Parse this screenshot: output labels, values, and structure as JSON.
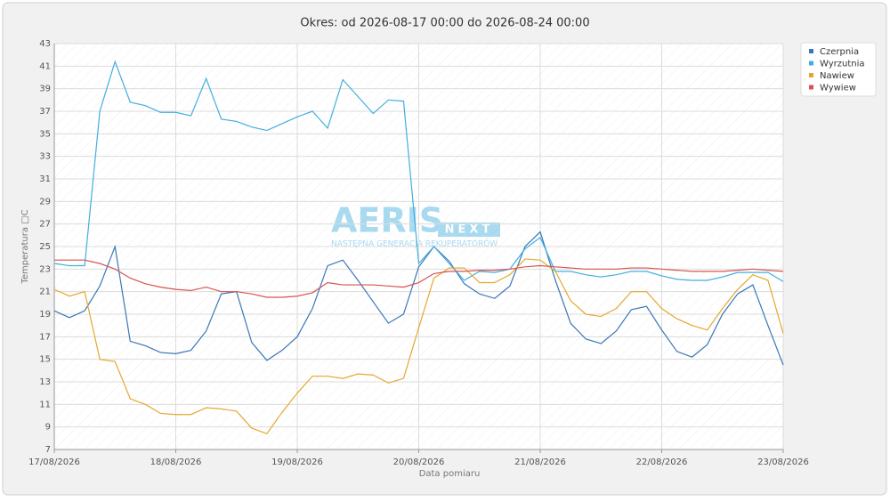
{
  "chart_data": {
    "type": "line",
    "title": "Okres: od 2026-08-17 00:00 do 2026-08-24 00:00",
    "x_label": "Data pomiaru",
    "y_label": "Temperatura □C",
    "watermark": {
      "brand": "AERIS",
      "badge": "NEXT",
      "tagline": "NASTĘPNA GENERACJA REKUPERATORÓW"
    },
    "xlim": [
      17,
      23
    ],
    "xticks": [
      {
        "value": 17,
        "label": "17/08/2026"
      },
      {
        "value": 18,
        "label": "18/08/2026"
      },
      {
        "value": 19,
        "label": "19/08/2026"
      },
      {
        "value": 20,
        "label": "20/08/2026"
      },
      {
        "value": 21,
        "label": "21/08/2026"
      },
      {
        "value": 22,
        "label": "22/08/2026"
      },
      {
        "value": 23,
        "label": "23/08/2026"
      }
    ],
    "ylim": [
      7,
      43
    ],
    "yticks": [
      7,
      9,
      11,
      13,
      15,
      17,
      19,
      21,
      23,
      25,
      27,
      29,
      31,
      33,
      35,
      37,
      39,
      41,
      43
    ],
    "grid": true,
    "legend": "top-right",
    "x": [
      17,
      17.125,
      17.25,
      17.375,
      17.5,
      17.625,
      17.75,
      17.875,
      18,
      18.125,
      18.25,
      18.375,
      18.5,
      18.625,
      18.75,
      18.875,
      19,
      19.125,
      19.25,
      19.375,
      19.5,
      19.625,
      19.75,
      19.875,
      20,
      20.125,
      20.25,
      20.375,
      20.5,
      20.625,
      20.75,
      20.875,
      21,
      21.125,
      21.25,
      21.375,
      21.5,
      21.625,
      21.75,
      21.875,
      22,
      22.125,
      22.25,
      22.375,
      22.5,
      22.625,
      22.75,
      22.875,
      23
    ],
    "series": [
      {
        "name": "Czerpnia",
        "color": "#3a77b8",
        "values": [
          19.3,
          18.7,
          19.3,
          21.5,
          25.0,
          16.6,
          16.2,
          15.6,
          15.5,
          15.8,
          17.5,
          20.8,
          21.0,
          16.5,
          14.9,
          15.8,
          17.0,
          19.5,
          23.3,
          23.8,
          22.0,
          20.1,
          18.2,
          19.0,
          23.2,
          25.0,
          23.7,
          21.7,
          20.8,
          20.4,
          21.5,
          25.0,
          26.3,
          22.0,
          18.2,
          16.8,
          16.4,
          17.5,
          19.4,
          19.7,
          17.6,
          15.7,
          15.2,
          16.3,
          19.0,
          20.8,
          21.6,
          18.0,
          14.5
        ]
      },
      {
        "name": "Wyrzutnia",
        "color": "#41aee0",
        "values": [
          23.5,
          23.3,
          23.3,
          37.0,
          41.4,
          37.8,
          37.5,
          36.9,
          36.9,
          36.6,
          39.9,
          36.3,
          36.1,
          35.6,
          35.3,
          35.9,
          36.5,
          37.0,
          35.5,
          39.8,
          38.3,
          36.8,
          38.0,
          37.9,
          23.5,
          25.0,
          23.5,
          22.0,
          22.8,
          22.7,
          23.0,
          24.8,
          25.8,
          22.8,
          22.8,
          22.5,
          22.3,
          22.5,
          22.8,
          22.8,
          22.4,
          22.1,
          22.0,
          22.0,
          22.3,
          22.7,
          22.7,
          22.7,
          21.9
        ]
      },
      {
        "name": "Nawiew",
        "color": "#e5a82f",
        "values": [
          21.2,
          20.6,
          21.0,
          15.0,
          14.8,
          11.5,
          11.0,
          10.2,
          10.1,
          10.1,
          10.7,
          10.6,
          10.4,
          8.9,
          8.4,
          10.3,
          12.0,
          13.5,
          13.5,
          13.3,
          13.7,
          13.6,
          12.9,
          13.3,
          17.8,
          22.2,
          23.1,
          23.1,
          21.8,
          21.8,
          22.5,
          23.9,
          23.8,
          22.8,
          20.2,
          19.0,
          18.8,
          19.5,
          21.0,
          21.0,
          19.5,
          18.6,
          18.0,
          17.6,
          19.5,
          21.2,
          22.5,
          22.0,
          17.3
        ]
      },
      {
        "name": "Wywiew",
        "color": "#d9534f",
        "values": [
          23.8,
          23.8,
          23.8,
          23.5,
          23.0,
          22.2,
          21.7,
          21.4,
          21.2,
          21.1,
          21.4,
          21.0,
          21.0,
          20.8,
          20.5,
          20.5,
          20.6,
          20.9,
          21.8,
          21.6,
          21.6,
          21.6,
          21.5,
          21.4,
          21.8,
          22.6,
          22.8,
          22.8,
          22.9,
          22.9,
          23.0,
          23.2,
          23.3,
          23.2,
          23.1,
          23.0,
          23.0,
          23.0,
          23.1,
          23.1,
          23.0,
          22.9,
          22.8,
          22.8,
          22.8,
          22.9,
          23.0,
          22.9,
          22.8
        ]
      }
    ]
  }
}
